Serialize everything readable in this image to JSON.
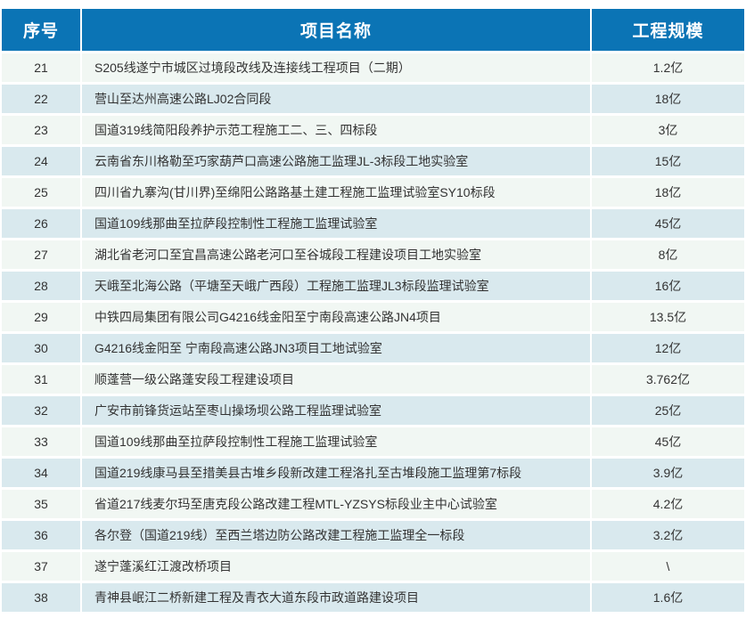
{
  "colors": {
    "header_bg": "#0b74b5",
    "header_text": "#ffffff",
    "row_odd_bg": "#f1f7f3",
    "row_even_bg": "#d9e9ee",
    "body_text": "#333333",
    "page_bg": "#ffffff"
  },
  "table": {
    "headers": {
      "serial": "序号",
      "name": "项目名称",
      "scale": "工程规模"
    },
    "rows": [
      {
        "no": "21",
        "name": "S205线遂宁市城区过境段改线及连接线工程项目（二期）",
        "scale": "1.2亿"
      },
      {
        "no": "22",
        "name": "营山至达州高速公路LJ02合同段",
        "scale": "18亿"
      },
      {
        "no": "23",
        "name": "国道319线简阳段养护示范工程施工二、三、四标段",
        "scale": "3亿"
      },
      {
        "no": "24",
        "name": "云南省东川格勒至巧家葫芦口高速公路施工监理JL-3标段工地实验室",
        "scale": "15亿"
      },
      {
        "no": "25",
        "name": "四川省九寨沟(甘川界)至绵阳公路路基土建工程施工监理试验室SY10标段",
        "scale": "18亿"
      },
      {
        "no": "26",
        "name": "国道109线那曲至拉萨段控制性工程施工监理试验室",
        "scale": "45亿"
      },
      {
        "no": "27",
        "name": "湖北省老河口至宜昌高速公路老河口至谷城段工程建设项目工地实验室",
        "scale": "8亿"
      },
      {
        "no": "28",
        "name": "天峨至北海公路（平塘至天峨广西段）工程施工监理JL3标段监理试验室",
        "scale": "16亿"
      },
      {
        "no": "29",
        "name": "中铁四局集团有限公司G4216线金阳至宁南段高速公路JN4项目",
        "scale": "13.5亿"
      },
      {
        "no": "30",
        "name": "G4216线金阳至 宁南段高速公路JN3项目工地试验室",
        "scale": "12亿"
      },
      {
        "no": "31",
        "name": "顺蓬营一级公路蓬安段工程建设项目",
        "scale": "3.762亿"
      },
      {
        "no": "32",
        "name": "广安市前锋货运站至枣山操场坝公路工程监理试验室",
        "scale": "25亿"
      },
      {
        "no": "33",
        "name": "国道109线那曲至拉萨段控制性工程施工监理试验室",
        "scale": "45亿"
      },
      {
        "no": "34",
        "name": "国道219线康马县至措美县古堆乡段新改建工程洛扎至古堆段施工监理第7标段",
        "scale": "3.9亿"
      },
      {
        "no": "35",
        "name": "省道217线麦尔玛至唐克段公路改建工程MTL-YZSYS标段业主中心试验室",
        "scale": "4.2亿"
      },
      {
        "no": "36",
        "name": "各尔登（国道219线）至西兰塔边防公路改建工程施工监理全一标段",
        "scale": "3.2亿"
      },
      {
        "no": "37",
        "name": "遂宁蓬溪红江渡改桥项目",
        "scale": "\\"
      },
      {
        "no": "38",
        "name": "青神县岷江二桥新建工程及青衣大道东段市政道路建设项目",
        "scale": "1.6亿"
      }
    ]
  }
}
